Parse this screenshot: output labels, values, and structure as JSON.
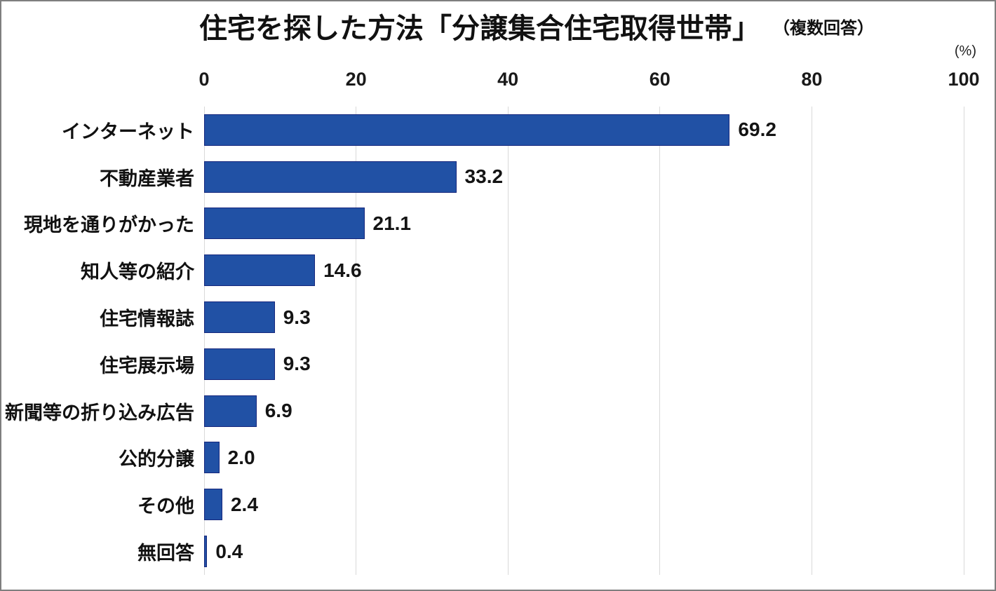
{
  "title": {
    "main": "住宅を探した方法「分譲集合住宅取得世帯」",
    "suffix": "（複数回答）"
  },
  "unit_label": "(%)",
  "chart_data": {
    "type": "bar",
    "orientation": "horizontal",
    "title": "住宅を探した方法「分譲集合住宅取得世帯」（複数回答）",
    "categories": [
      "インターネット",
      "不動産業者",
      "現地を通りがかった",
      "知人等の紹介",
      "住宅情報誌",
      "住宅展示場",
      "新聞等の折り込み広告",
      "公的分譲",
      "その他",
      "無回答"
    ],
    "values": [
      69.2,
      33.2,
      21.1,
      14.6,
      9.3,
      9.3,
      6.9,
      2.0,
      2.4,
      0.4
    ],
    "value_labels": [
      "69.2",
      "33.2",
      "21.1",
      "14.6",
      "9.3",
      "9.3",
      "6.9",
      "2.0",
      "2.4",
      "0.4"
    ],
    "unit": "%",
    "xlabel": "(%)",
    "ylabel": "",
    "xlim": [
      0,
      100
    ],
    "x_ticks": [
      0,
      20,
      40,
      60,
      80,
      100
    ],
    "grid": "vertical-gridlines-on",
    "legend": "none",
    "colors": {
      "bar_fill": "#2151a5",
      "bar_border": "#16277d",
      "gridline": "#d9d9d9",
      "text": "#111111",
      "frame_border": "#7f7f7f",
      "background": "#ffffff"
    }
  }
}
